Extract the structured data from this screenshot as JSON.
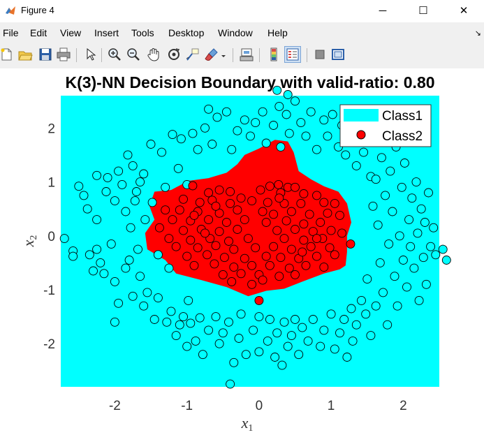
{
  "window": {
    "title": "Figure 4",
    "minimize_glyph": "─",
    "maximize_glyph": "☐",
    "close_glyph": "✕"
  },
  "menu": {
    "items": [
      "File",
      "Edit",
      "View",
      "Insert",
      "Tools",
      "Desktop",
      "Window",
      "Help"
    ],
    "overflow_glyph": "↘"
  },
  "toolbar": {
    "buttons": [
      "new-figure-icon",
      "open-file-icon",
      "save-icon",
      "print-icon",
      "select-arrow-icon",
      "zoom-in-icon",
      "zoom-out-icon",
      "pan-hand-icon",
      "rotate-3d-icon",
      "data-cursor-icon",
      "brush-icon",
      "link-plot-icon",
      "colorbar-icon",
      "legend-icon",
      "hide-plot-tools-icon",
      "show-plot-tools-icon"
    ]
  },
  "colors": {
    "class1": "#00ffff",
    "class2": "#ff0000",
    "marker_edge": "#000000"
  },
  "chart_data": {
    "type": "scatter",
    "title": "K(3)-NN Decision Boundary with valid-ratio: 0.80",
    "xlabel": "x",
    "xlabel_sub": "1",
    "ylabel": "x",
    "ylabel_sub": "2",
    "xlim": [
      -2.75,
      2.5
    ],
    "ylim": [
      -2.8,
      2.6
    ],
    "xticks": [
      -2,
      -1,
      0,
      1,
      2
    ],
    "yticks": [
      -2,
      -1,
      0,
      1,
      2
    ],
    "grid": false,
    "legend": {
      "placement": "top-right",
      "entries": [
        {
          "label": "Class1",
          "type": "patch",
          "color": "#00ffff"
        },
        {
          "label": "Class2",
          "type": "marker",
          "color": "#ff0000"
        }
      ]
    },
    "background_region": {
      "name": "Class1",
      "color": "#00ffff"
    },
    "decision_region": {
      "name": "Class2",
      "color": "#ff0000",
      "boundary": [
        [
          -0.98,
          1.02
        ],
        [
          -0.7,
          1.07
        ],
        [
          -0.45,
          1.17
        ],
        [
          -0.3,
          1.33
        ],
        [
          -0.2,
          1.5
        ],
        [
          0.0,
          1.62
        ],
        [
          0.22,
          1.78
        ],
        [
          0.4,
          1.75
        ],
        [
          0.48,
          1.55
        ],
        [
          0.55,
          1.2
        ],
        [
          0.72,
          1.05
        ],
        [
          0.9,
          0.92
        ],
        [
          1.1,
          0.82
        ],
        [
          1.22,
          0.6
        ],
        [
          1.28,
          0.25
        ],
        [
          1.22,
          0.0
        ],
        [
          1.22,
          -0.3
        ],
        [
          1.2,
          -0.55
        ],
        [
          1.12,
          -0.62
        ],
        [
          0.9,
          -0.7
        ],
        [
          0.6,
          -0.85
        ],
        [
          0.35,
          -0.98
        ],
        [
          0.1,
          -1.02
        ],
        [
          -0.15,
          -1.12
        ],
        [
          -0.45,
          -0.95
        ],
        [
          -0.8,
          -0.82
        ],
        [
          -1.15,
          -0.7
        ],
        [
          -1.3,
          -0.45
        ],
        [
          -1.55,
          -0.25
        ],
        [
          -1.58,
          0.05
        ],
        [
          -1.45,
          0.3
        ],
        [
          -1.52,
          0.55
        ],
        [
          -1.45,
          0.82
        ],
        [
          -1.22,
          0.85
        ]
      ]
    },
    "class2_points": [
      [
        -0.92,
        0.93
      ],
      [
        0.15,
        0.92
      ],
      [
        0.27,
        0.95
      ],
      [
        0.4,
        0.9
      ],
      [
        0.5,
        0.9
      ],
      [
        -0.7,
        0.8
      ],
      [
        -0.55,
        0.85
      ],
      [
        -0.4,
        0.82
      ],
      [
        0.02,
        0.85
      ],
      [
        0.3,
        0.8
      ],
      [
        0.62,
        0.78
      ],
      [
        0.8,
        0.75
      ],
      [
        -1.05,
        0.68
      ],
      [
        -0.82,
        0.62
      ],
      [
        -0.65,
        0.66
      ],
      [
        -0.4,
        0.6
      ],
      [
        -0.1,
        0.65
      ],
      [
        0.12,
        0.62
      ],
      [
        0.35,
        0.6
      ],
      [
        0.58,
        0.6
      ],
      [
        0.9,
        0.62
      ],
      [
        1.05,
        0.6
      ],
      [
        -1.3,
        0.48
      ],
      [
        -1.1,
        0.48
      ],
      [
        -0.85,
        0.45
      ],
      [
        -0.55,
        0.42
      ],
      [
        -0.3,
        0.48
      ],
      [
        0.05,
        0.45
      ],
      [
        0.2,
        0.4
      ],
      [
        0.45,
        0.45
      ],
      [
        0.7,
        0.4
      ],
      [
        0.95,
        0.42
      ],
      [
        1.12,
        0.38
      ],
      [
        -1.2,
        0.3
      ],
      [
        -0.95,
        0.28
      ],
      [
        -0.7,
        0.3
      ],
      [
        -0.45,
        0.25
      ],
      [
        -0.2,
        0.3
      ],
      [
        0.1,
        0.25
      ],
      [
        0.38,
        0.28
      ],
      [
        0.62,
        0.22
      ],
      [
        0.85,
        0.25
      ],
      [
        -1.38,
        0.15
      ],
      [
        -1.05,
        0.1
      ],
      [
        -0.8,
        0.12
      ],
      [
        -0.55,
        0.08
      ],
      [
        -0.3,
        0.12
      ],
      [
        0.25,
        0.1
      ],
      [
        0.5,
        0.12
      ],
      [
        0.75,
        0.08
      ],
      [
        1.0,
        0.1
      ],
      [
        1.15,
        0.05
      ],
      [
        -1.25,
        -0.05
      ],
      [
        -0.95,
        -0.08
      ],
      [
        -0.68,
        -0.05
      ],
      [
        -0.42,
        -0.1
      ],
      [
        -0.15,
        -0.05
      ],
      [
        0.35,
        -0.05
      ],
      [
        0.62,
        -0.08
      ],
      [
        0.88,
        -0.05
      ],
      [
        -1.15,
        -0.2
      ],
      [
        -0.85,
        -0.22
      ],
      [
        -0.6,
        -0.18
      ],
      [
        -0.35,
        -0.25
      ],
      [
        -0.05,
        -0.22
      ],
      [
        0.2,
        -0.2
      ],
      [
        0.45,
        -0.25
      ],
      [
        0.72,
        -0.2
      ],
      [
        0.98,
        -0.22
      ],
      [
        -1.0,
        -0.38
      ],
      [
        -0.72,
        -0.35
      ],
      [
        -0.48,
        -0.4
      ],
      [
        -0.2,
        -0.42
      ],
      [
        0.1,
        -0.38
      ],
      [
        0.3,
        -0.4
      ],
      [
        0.55,
        -0.42
      ],
      [
        0.8,
        -0.38
      ],
      [
        1.05,
        -0.35
      ],
      [
        -0.9,
        -0.55
      ],
      [
        -0.62,
        -0.52
      ],
      [
        -0.35,
        -0.58
      ],
      [
        -0.1,
        -0.55
      ],
      [
        0.15,
        -0.55
      ],
      [
        0.42,
        -0.6
      ],
      [
        0.65,
        -0.55
      ],
      [
        0.9,
        -0.58
      ],
      [
        -0.5,
        -0.72
      ],
      [
        -0.25,
        -0.7
      ],
      [
        0.0,
        -0.72
      ],
      [
        0.28,
        -0.75
      ],
      [
        0.5,
        -0.72
      ],
      [
        -0.38,
        -0.85
      ],
      [
        -0.1,
        -0.9
      ],
      [
        0.05,
        -0.82
      ],
      [
        -0.75,
        0.05
      ],
      [
        -0.6,
        0.55
      ],
      [
        0.28,
        0.7
      ],
      [
        -0.25,
        0.7
      ],
      [
        0.8,
        -0.05
      ],
      [
        -0.9,
        0.38
      ],
      [
        0.6,
        -0.3
      ],
      [
        0.0,
        -1.2
      ],
      [
        1.27,
        -0.15
      ]
    ],
    "class1_points": [
      [
        -2.7,
        -0.05
      ],
      [
        -2.58,
        -0.28
      ],
      [
        -2.58,
        -0.38
      ],
      [
        -2.5,
        0.92
      ],
      [
        -2.43,
        0.75
      ],
      [
        -2.38,
        0.5
      ],
      [
        -2.35,
        -0.35
      ],
      [
        -2.3,
        -0.65
      ],
      [
        -2.25,
        -0.25
      ],
      [
        -2.25,
        1.12
      ],
      [
        -2.25,
        0.3
      ],
      [
        -2.2,
        -0.5
      ],
      [
        -2.15,
        -0.7
      ],
      [
        -2.12,
        0.82
      ],
      [
        -2.1,
        1.08
      ],
      [
        -2.05,
        -0.15
      ],
      [
        -2.0,
        0.65
      ],
      [
        -2.0,
        -0.85
      ],
      [
        -1.95,
        -1.25
      ],
      [
        -1.95,
        1.2
      ],
      [
        -1.9,
        0.95
      ],
      [
        -1.85,
        0.45
      ],
      [
        -1.85,
        -0.6
      ],
      [
        -1.82,
        1.5
      ],
      [
        -1.8,
        -0.45
      ],
      [
        -1.78,
        0.15
      ],
      [
        -1.75,
        1.3
      ],
      [
        -1.75,
        -1.12
      ],
      [
        -1.72,
        0.65
      ],
      [
        -1.7,
        0.82
      ],
      [
        -1.68,
        -0.25
      ],
      [
        -1.65,
        1.0
      ],
      [
        -1.65,
        -0.75
      ],
      [
        -1.6,
        -1.3
      ],
      [
        -1.58,
        0.3
      ],
      [
        -1.55,
        -1.05
      ],
      [
        -1.5,
        1.7
      ],
      [
        -1.48,
        0.62
      ],
      [
        -1.45,
        -1.55
      ],
      [
        -1.4,
        -0.35
      ],
      [
        -1.4,
        -1.15
      ],
      [
        -1.35,
        1.55
      ],
      [
        -1.3,
        0.9
      ],
      [
        -1.28,
        -1.6
      ],
      [
        -1.25,
        -0.6
      ],
      [
        -1.22,
        -1.4
      ],
      [
        -1.2,
        1.88
      ],
      [
        -1.15,
        -1.85
      ],
      [
        -1.12,
        1.25
      ],
      [
        -1.1,
        -1.65
      ],
      [
        -1.08,
        1.8
      ],
      [
        -1.05,
        -1.5
      ],
      [
        -1.0,
        0.95
      ],
      [
        -1.0,
        -2.05
      ],
      [
        -0.98,
        -1.2
      ],
      [
        -0.95,
        -1.62
      ],
      [
        -0.92,
        1.9
      ],
      [
        -0.88,
        -1.95
      ],
      [
        -0.85,
        1.6
      ],
      [
        -0.82,
        -1.52
      ],
      [
        -0.78,
        -2.2
      ],
      [
        -0.75,
        2.0
      ],
      [
        -0.7,
        -1.75
      ],
      [
        -0.65,
        1.7
      ],
      [
        -0.6,
        -1.5
      ],
      [
        -0.58,
        2.2
      ],
      [
        -0.55,
        -2.0
      ],
      [
        -0.5,
        -1.8
      ],
      [
        -0.45,
        2.3
      ],
      [
        -0.42,
        -1.6
      ],
      [
        -0.38,
        1.6
      ],
      [
        -0.35,
        -2.35
      ],
      [
        -0.3,
        1.95
      ],
      [
        -0.28,
        -1.9
      ],
      [
        -0.25,
        -1.45
      ],
      [
        -0.2,
        2.15
      ],
      [
        -0.18,
        -2.2
      ],
      [
        -0.12,
        1.85
      ],
      [
        -0.08,
        -1.75
      ],
      [
        -0.05,
        2.1
      ],
      [
        0.0,
        -1.5
      ],
      [
        0.0,
        -2.15
      ],
      [
        0.05,
        2.3
      ],
      [
        0.1,
        1.72
      ],
      [
        0.12,
        -1.95
      ],
      [
        0.15,
        -1.55
      ],
      [
        0.2,
        2.05
      ],
      [
        0.22,
        -2.25
      ],
      [
        0.25,
        -1.8
      ],
      [
        0.28,
        2.4
      ],
      [
        0.3,
        1.65
      ],
      [
        0.32,
        -2.4
      ],
      [
        0.35,
        -1.6
      ],
      [
        0.38,
        2.25
      ],
      [
        0.4,
        -2.05
      ],
      [
        0.42,
        1.9
      ],
      [
        0.45,
        -1.85
      ],
      [
        0.5,
        2.5
      ],
      [
        0.5,
        -1.55
      ],
      [
        0.55,
        -2.2
      ],
      [
        0.58,
        2.1
      ],
      [
        0.6,
        -1.7
      ],
      [
        0.65,
        1.85
      ],
      [
        0.68,
        -1.95
      ],
      [
        0.72,
        2.3
      ],
      [
        0.75,
        -1.55
      ],
      [
        0.8,
        1.6
      ],
      [
        0.85,
        -2.05
      ],
      [
        0.9,
        2.15
      ],
      [
        0.9,
        -1.75
      ],
      [
        0.95,
        1.85
      ],
      [
        1.0,
        -1.45
      ],
      [
        1.02,
        2.25
      ],
      [
        1.05,
        -2.1
      ],
      [
        1.1,
        1.65
      ],
      [
        1.12,
        -1.8
      ],
      [
        1.15,
        2.05
      ],
      [
        1.18,
        -1.55
      ],
      [
        1.2,
        1.5
      ],
      [
        1.22,
        -2.25
      ],
      [
        1.25,
        1.85
      ],
      [
        1.28,
        -1.35
      ],
      [
        1.3,
        -1.95
      ],
      [
        1.32,
        2.3
      ],
      [
        1.35,
        1.3
      ],
      [
        1.35,
        -1.65
      ],
      [
        1.4,
        2.1
      ],
      [
        1.42,
        -1.2
      ],
      [
        1.45,
        1.55
      ],
      [
        1.48,
        -1.45
      ],
      [
        1.5,
        2.25
      ],
      [
        1.5,
        -0.8
      ],
      [
        1.55,
        1.1
      ],
      [
        1.55,
        -1.85
      ],
      [
        1.58,
        0.55
      ],
      [
        1.6,
        1.9
      ],
      [
        1.62,
        -1.3
      ],
      [
        1.65,
        0.2
      ],
      [
        1.68,
        -0.5
      ],
      [
        1.7,
        1.45
      ],
      [
        1.72,
        -1.05
      ],
      [
        1.75,
        0.75
      ],
      [
        1.78,
        -1.65
      ],
      [
        1.8,
        -0.15
      ],
      [
        1.82,
        1.2
      ],
      [
        1.85,
        0.45
      ],
      [
        1.88,
        -0.75
      ],
      [
        1.9,
        1.65
      ],
      [
        1.92,
        -1.3
      ],
      [
        1.95,
        0.0
      ],
      [
        1.98,
        0.9
      ],
      [
        2.0,
        -0.45
      ],
      [
        2.02,
        1.35
      ],
      [
        2.05,
        -0.95
      ],
      [
        2.08,
        0.3
      ],
      [
        2.1,
        -0.2
      ],
      [
        2.12,
        0.7
      ],
      [
        2.15,
        -0.6
      ],
      [
        2.18,
        1.0
      ],
      [
        2.2,
        0.05
      ],
      [
        2.22,
        -1.2
      ],
      [
        2.25,
        0.5
      ],
      [
        2.28,
        -0.4
      ],
      [
        2.3,
        0.25
      ],
      [
        2.32,
        -0.9
      ],
      [
        2.35,
        0.8
      ],
      [
        2.38,
        -0.2
      ],
      [
        2.42,
        0.15
      ],
      [
        2.45,
        -0.35
      ],
      [
        2.55,
        -0.25
      ],
      [
        2.6,
        -0.45
      ],
      [
        -2.0,
        -1.6
      ],
      [
        -1.6,
        1.15
      ],
      [
        1.62,
        1.05
      ],
      [
        -0.7,
        2.35
      ],
      [
        0.25,
        2.7
      ],
      [
        -0.4,
        -2.75
      ],
      [
        0.4,
        2.62
      ],
      [
        -1.4,
        -0.35
      ]
    ]
  }
}
